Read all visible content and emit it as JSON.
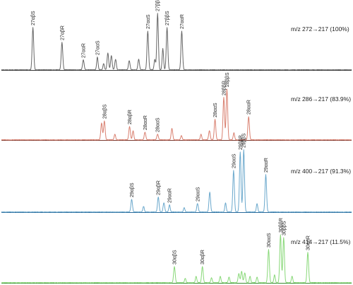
{
  "chart_data": [
    {
      "type": "line",
      "ion_label": "m/z 272→217 (100%)",
      "color": "#666666",
      "baseline_color": "#333333",
      "x_range": [
        0,
        100
      ],
      "y_range": [
        0,
        100
      ],
      "peaks": [
        {
          "x": 9,
          "y": 60,
          "w": 0.22
        },
        {
          "x": 17.3,
          "y": 39,
          "w": 0.22
        },
        {
          "x": 23.4,
          "y": 14,
          "w": 0.22
        },
        {
          "x": 27.4,
          "y": 18,
          "w": 0.2
        },
        {
          "x": 29.2,
          "y": 9,
          "w": 0.2
        },
        {
          "x": 30.4,
          "y": 24,
          "w": 0.22
        },
        {
          "x": 31.4,
          "y": 20,
          "w": 0.22
        },
        {
          "x": 32.6,
          "y": 15,
          "w": 0.22
        },
        {
          "x": 36.5,
          "y": 13,
          "w": 0.22
        },
        {
          "x": 39.2,
          "y": 15,
          "w": 0.22
        },
        {
          "x": 41.8,
          "y": 55,
          "w": 0.22
        },
        {
          "x": 43.8,
          "y": 15,
          "w": 0.2
        },
        {
          "x": 44.6,
          "y": 80,
          "w": 0.22
        },
        {
          "x": 46.1,
          "y": 30,
          "w": 0.2
        },
        {
          "x": 47.3,
          "y": 60,
          "w": 0.22
        },
        {
          "x": 51.5,
          "y": 55,
          "w": 0.22
        }
      ],
      "labels": [
        {
          "x": 9,
          "y": 60,
          "text": "27αβS"
        },
        {
          "x": 17.3,
          "y": 39,
          "text": "27αβR"
        },
        {
          "x": 23.4,
          "y": 14,
          "text": "27ααR"
        },
        {
          "x": 27.4,
          "y": 18,
          "text": "27ααS"
        },
        {
          "x": 41.8,
          "y": 55,
          "text": "27ααS"
        },
        {
          "x": 44.6,
          "y": 80,
          "text": "27ββR"
        },
        {
          "x": 47.3,
          "y": 60,
          "text": "27ββS"
        },
        {
          "x": 51.5,
          "y": 55,
          "text": "27ααR"
        }
      ]
    },
    {
      "type": "line",
      "ion_label": "m/z 286→217 (83.9%)",
      "color": "#d98070",
      "baseline_color": "#7a3a30",
      "x_range": [
        0,
        100
      ],
      "y_range": [
        0,
        100
      ],
      "peaks": [
        {
          "x": 28.6,
          "y": 24,
          "w": 0.22
        },
        {
          "x": 29.4,
          "y": 27,
          "w": 0.22
        },
        {
          "x": 32.4,
          "y": 8,
          "w": 0.2
        },
        {
          "x": 36.6,
          "y": 19,
          "w": 0.22
        },
        {
          "x": 37.6,
          "y": 13,
          "w": 0.2
        },
        {
          "x": 41,
          "y": 11,
          "w": 0.22
        },
        {
          "x": 44.6,
          "y": 8,
          "w": 0.22
        },
        {
          "x": 48.7,
          "y": 16,
          "w": 0.22
        },
        {
          "x": 51.4,
          "y": 6,
          "w": 0.2
        },
        {
          "x": 57,
          "y": 8,
          "w": 0.2
        },
        {
          "x": 59.4,
          "y": 13,
          "w": 0.22
        },
        {
          "x": 61,
          "y": 29,
          "w": 0.22
        },
        {
          "x": 63.5,
          "y": 60,
          "w": 0.22
        },
        {
          "x": 64.4,
          "y": 72,
          "w": 0.22
        },
        {
          "x": 66.4,
          "y": 10,
          "w": 0.2
        },
        {
          "x": 70.6,
          "y": 33,
          "w": 0.22
        }
      ],
      "labels": [
        {
          "x": 29.4,
          "y": 27,
          "text": "28αβS"
        },
        {
          "x": 36.6,
          "y": 19,
          "text": "28αβR"
        },
        {
          "x": 41,
          "y": 11,
          "text": "28ααR"
        },
        {
          "x": 44.6,
          "y": 8,
          "text": "28ααS"
        },
        {
          "x": 61,
          "y": 29,
          "text": "28ααS"
        },
        {
          "x": 63.5,
          "y": 60,
          "text": "28ββR"
        },
        {
          "x": 64.4,
          "y": 72,
          "text": "28ββS"
        },
        {
          "x": 70.6,
          "y": 33,
          "text": "28ααR"
        }
      ]
    },
    {
      "type": "line",
      "ion_label": "m/z 400→217 (91.3%)",
      "color": "#6aa8cc",
      "baseline_color": "#2a6a9a",
      "x_range": [
        0,
        100
      ],
      "y_range": [
        0,
        100
      ],
      "peaks": [
        {
          "x": 37.2,
          "y": 18,
          "w": 0.22
        },
        {
          "x": 40.6,
          "y": 8,
          "w": 0.2
        },
        {
          "x": 44.8,
          "y": 21,
          "w": 0.22
        },
        {
          "x": 46.4,
          "y": 13,
          "w": 0.22
        },
        {
          "x": 48,
          "y": 10,
          "w": 0.2
        },
        {
          "x": 52.2,
          "y": 6,
          "w": 0.2
        },
        {
          "x": 56,
          "y": 12,
          "w": 0.22
        },
        {
          "x": 59.5,
          "y": 28,
          "w": 0.22
        },
        {
          "x": 64,
          "y": 13,
          "w": 0.2
        },
        {
          "x": 66.3,
          "y": 59,
          "w": 0.22
        },
        {
          "x": 68.2,
          "y": 85,
          "w": 0.22
        },
        {
          "x": 69.2,
          "y": 88,
          "w": 0.22
        },
        {
          "x": 73,
          "y": 12,
          "w": 0.2
        },
        {
          "x": 75.5,
          "y": 53,
          "w": 0.22
        }
      ],
      "labels": [
        {
          "x": 37.2,
          "y": 18,
          "text": "29αβS"
        },
        {
          "x": 44.8,
          "y": 21,
          "text": "29αβR"
        },
        {
          "x": 48,
          "y": 10,
          "text": "29ααR"
        },
        {
          "x": 56,
          "y": 12,
          "text": "29ααS"
        },
        {
          "x": 66.3,
          "y": 59,
          "text": "29ααS"
        },
        {
          "x": 68.2,
          "y": 85,
          "text": "29ββR"
        },
        {
          "x": 69.2,
          "y": 88,
          "text": "29ββS"
        },
        {
          "x": 75.5,
          "y": 53,
          "text": "29ααR"
        }
      ]
    },
    {
      "type": "line",
      "ion_label": "m/z 414→217 (11.5%)",
      "color": "#88d878",
      "baseline_color": "#3a8a30",
      "x_range": [
        0,
        100
      ],
      "y_range": [
        0,
        100
      ],
      "peaks": [
        {
          "x": 49.4,
          "y": 23,
          "w": 0.22
        },
        {
          "x": 52.5,
          "y": 6,
          "w": 0.2
        },
        {
          "x": 55.6,
          "y": 9,
          "w": 0.2
        },
        {
          "x": 57.4,
          "y": 23,
          "w": 0.22
        },
        {
          "x": 60,
          "y": 7,
          "w": 0.2
        },
        {
          "x": 62.5,
          "y": 9,
          "w": 0.2
        },
        {
          "x": 65,
          "y": 8,
          "w": 0.2
        },
        {
          "x": 67.8,
          "y": 13,
          "w": 0.22
        },
        {
          "x": 68.6,
          "y": 16,
          "w": 0.22
        },
        {
          "x": 69.5,
          "y": 14,
          "w": 0.22
        },
        {
          "x": 71,
          "y": 9,
          "w": 0.2
        },
        {
          "x": 73,
          "y": 8,
          "w": 0.2
        },
        {
          "x": 76.3,
          "y": 47,
          "w": 0.22
        },
        {
          "x": 78,
          "y": 11,
          "w": 0.2
        },
        {
          "x": 79.7,
          "y": 68,
          "w": 0.22
        },
        {
          "x": 80.6,
          "y": 64,
          "w": 0.22
        },
        {
          "x": 83,
          "y": 9,
          "w": 0.2
        },
        {
          "x": 87.5,
          "y": 43,
          "w": 0.22
        }
      ],
      "labels": [
        {
          "x": 49.4,
          "y": 23,
          "text": "30αβS"
        },
        {
          "x": 57.4,
          "y": 23,
          "text": "30αβR"
        },
        {
          "x": 76.3,
          "y": 47,
          "text": "30ααS"
        },
        {
          "x": 79.7,
          "y": 68,
          "text": "30ββR"
        },
        {
          "x": 80.6,
          "y": 64,
          "text": "30ββS"
        },
        {
          "x": 87.5,
          "y": 43,
          "text": "30ααR"
        }
      ]
    }
  ]
}
